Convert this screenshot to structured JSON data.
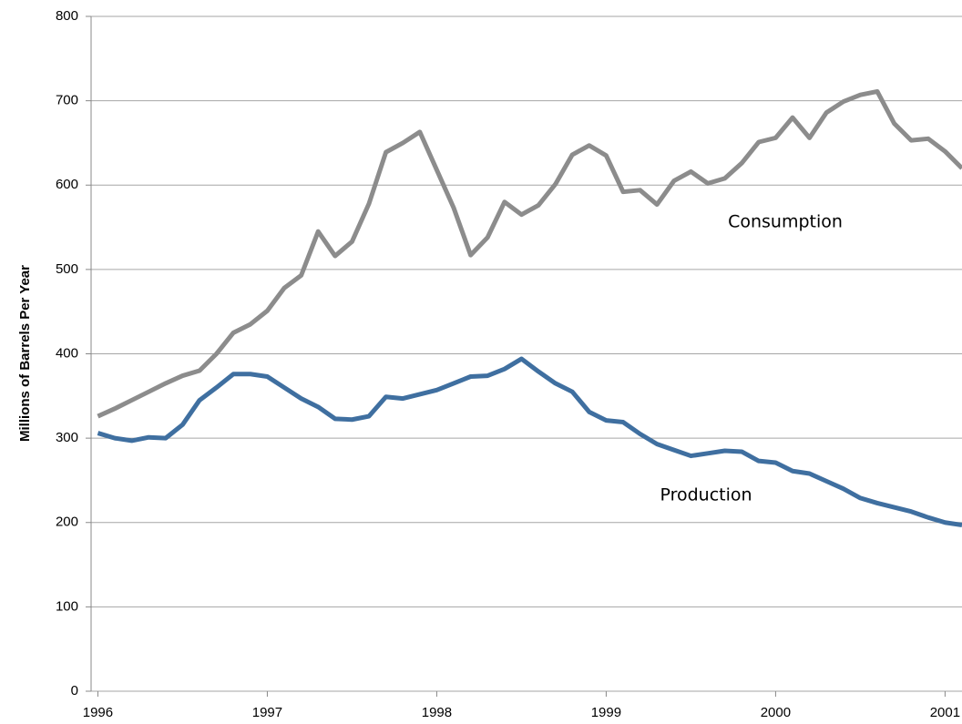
{
  "chart_data": {
    "type": "line",
    "y_label": "Millions of Barrels Per Year",
    "annotations": [
      "Consumption",
      "Production"
    ],
    "x": [
      1996.0,
      1996.1,
      1996.2,
      1996.3,
      1996.4,
      1996.5,
      1996.6,
      1996.7,
      1996.8,
      1996.9,
      1997.0,
      1997.1,
      1997.2,
      1997.3,
      1997.4,
      1997.5,
      1997.6,
      1997.7,
      1997.8,
      1997.9,
      1998.0,
      1998.1,
      1998.2,
      1998.3,
      1998.4,
      1998.5,
      1998.6,
      1998.7,
      1998.8,
      1998.9,
      1999.0,
      1999.1,
      1999.2,
      1999.3,
      1999.4,
      1999.5,
      1999.6,
      1999.7,
      1999.8,
      1999.9,
      2000.0,
      2000.1,
      2000.2,
      2000.3,
      2000.4,
      2000.5,
      2000.6,
      2000.7,
      2000.8,
      2000.9,
      2001.0,
      2001.1
    ],
    "series": [
      {
        "name": "Consumption",
        "color": "#8c8c8c",
        "values": [
          326,
          335,
          345,
          355,
          365,
          374,
          380,
          400,
          425,
          435,
          451,
          478,
          493,
          545,
          516,
          533,
          578,
          639,
          650,
          663,
          618,
          573,
          517,
          538,
          580,
          565,
          576,
          601,
          636,
          647,
          635,
          592,
          594,
          577,
          605,
          616,
          602,
          608,
          626,
          651,
          656,
          680,
          656,
          686,
          699,
          707,
          711,
          673,
          653,
          655,
          640,
          620
        ]
      },
      {
        "name": "Production",
        "color": "#3f6fa0",
        "values": [
          306,
          300,
          297,
          301,
          300,
          316,
          345,
          360,
          376,
          376,
          373,
          360,
          347,
          337,
          323,
          322,
          326,
          349,
          347,
          352,
          357,
          365,
          373,
          374,
          382,
          394,
          379,
          365,
          355,
          331,
          321,
          319,
          305,
          293,
          286,
          279,
          282,
          285,
          284,
          273,
          271,
          261,
          258,
          249,
          240,
          229,
          223,
          218,
          213,
          206,
          200,
          197
        ]
      }
    ],
    "xlim": [
      1995.96,
      2001.1
    ],
    "xticks": [
      1996,
      1997,
      1998,
      1999,
      2000,
      2001
    ],
    "ylim": [
      0,
      800
    ],
    "yticks": [
      0,
      100,
      200,
      300,
      400,
      500,
      600,
      700,
      800
    ],
    "grid": true
  }
}
